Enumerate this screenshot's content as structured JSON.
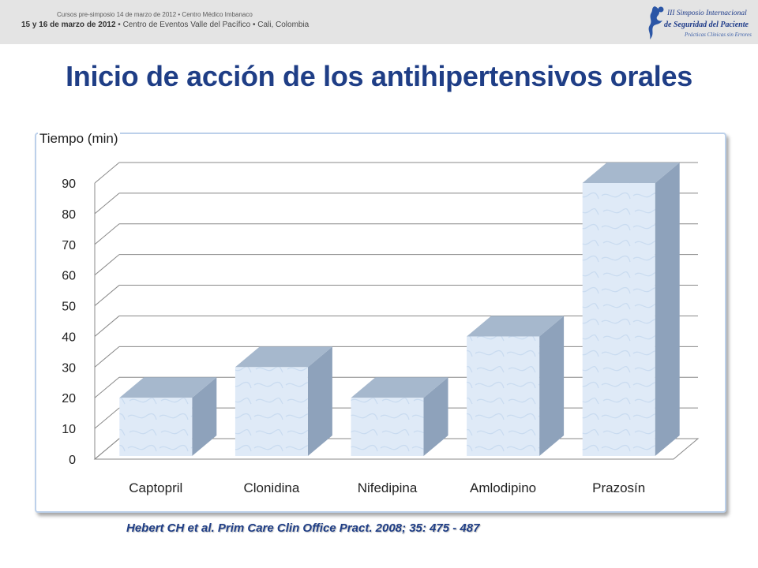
{
  "header": {
    "event_line1": "Cursos pre-simposio 14 de marzo de 2012 • Centro Médico Imbanaco",
    "event_line2_bold": "15 y 16 de marzo de 2012",
    "event_line2_rest": " • Centro de Eventos Valle del Pacífico • Cali, Colombia",
    "logo_line1": "III Simposio Internacional",
    "logo_line2": "de Seguridad del Paciente",
    "logo_line3": "Prácticas Clínicas sin Errores",
    "logo_icon": "stylized-figure-icon"
  },
  "colors": {
    "title": "#1f3e86",
    "bar_front": "#dfeaf7",
    "bar_side": "#8ea2bb",
    "bar_top": "#a6b8cd",
    "grid": "#888888"
  },
  "chart_data": {
    "type": "bar",
    "title": "Inicio de acción de los antihipertensivos orales",
    "ylabel": "Tiempo (min)",
    "xlabel": "",
    "categories": [
      "Captopril",
      "Clonidina",
      "Nifedipina",
      "Amlodipino",
      "Prazosín"
    ],
    "values": [
      20,
      30,
      20,
      40,
      90
    ],
    "ylim": [
      0,
      90
    ],
    "yticks": [
      0,
      10,
      20,
      30,
      40,
      50,
      60,
      70,
      80,
      90
    ],
    "grid": true,
    "style": "3d"
  },
  "source": "Hebert CH et al. Prim Care Clin Office Pract. 2008; 35: 475 - 487"
}
